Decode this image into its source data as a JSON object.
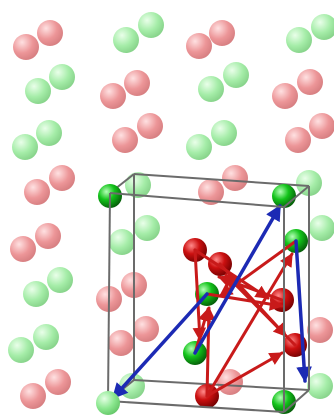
{
  "figure": {
    "type": "crystal-structure-unit-cell",
    "background": "#ffffff"
  },
  "palette": {
    "red_atom": "#e8797c",
    "red_atom_light": "#ffd9da",
    "green_atom": "#8ce890",
    "green_atom_light": "#e4ffe4",
    "red_atom_active": "#cc1010",
    "red_atom_active_dark": "#6e0000",
    "green_atom_active": "#13c41a",
    "green_atom_active_dark": "#045407",
    "cell_edge": "#6b6b6b",
    "red_arrow": "#c81a1a",
    "blue_arrow": "#1c2ab4"
  },
  "elements": {
    "background_atoms": {
      "count": 46,
      "species": [
        "red",
        "green"
      ],
      "opacity": 0.75
    },
    "cell_atoms": {
      "count": 11,
      "species": [
        "red",
        "green"
      ]
    },
    "unit_cell": {
      "shape": "parallelepiped",
      "edges": 12
    },
    "red_arrows": {
      "count": 11
    },
    "blue_arrows": {
      "count": 3
    }
  }
}
